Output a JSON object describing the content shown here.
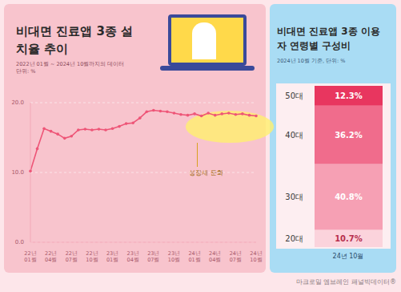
{
  "chart_data": [
    {
      "type": "line",
      "title": "비대면 진료앱 3종 설치율 추이",
      "subtitle": "2022년 01월 ~ 2024년 10월까지의 데이터",
      "unit_note": "단위: %",
      "annotation": "성장세 둔화",
      "categories": [
        "22년 01월",
        null,
        null,
        "22년 04월",
        null,
        null,
        "22년 07월",
        null,
        null,
        "22년 10월",
        null,
        null,
        "23년 01월",
        null,
        null,
        "23년 04월",
        null,
        null,
        "23년 07월",
        null,
        null,
        "23년 10월",
        null,
        null,
        "24년 01월",
        null,
        null,
        "24년 04월",
        null,
        null,
        "24년 07월",
        null,
        null,
        "24년 10월"
      ],
      "values": [
        10.2,
        13.4,
        16.3,
        15.9,
        15.5,
        14.9,
        15.2,
        16.1,
        16.2,
        16.1,
        16.2,
        16.1,
        16.3,
        16.6,
        17.0,
        17.1,
        17.8,
        18.7,
        18.9,
        18.8,
        18.7,
        18.5,
        18.3,
        18.2,
        18.4,
        18.1,
        18.5,
        18.2,
        18.4,
        18.5,
        18.3,
        18.4,
        18.2,
        18.1
      ],
      "color": "#ee5577",
      "marker": "circle",
      "grid": true,
      "ylim": [
        0,
        20
      ],
      "yticks": [
        {
          "value": 0,
          "label": "0.0"
        },
        {
          "value": 10,
          "label": "10.0"
        },
        {
          "value": 20,
          "label": "20.0"
        }
      ]
    },
    {
      "type": "bar",
      "title": "비대면 진료앱 3종 이용자 연령별 구성비",
      "subtitle": "2024년 10월 기준, 단위: %",
      "stacked": true,
      "data_labels": true,
      "tick_labels": "x",
      "categories": [
        "24년 10월"
      ],
      "ylim": [
        0,
        100
      ],
      "series": [
        {
          "name": "20대",
          "color": "#fbd3dc",
          "values": [
            10.7
          ],
          "value_labels": [
            "10.7%"
          ]
        },
        {
          "name": "30대",
          "color": "#f6a0b4",
          "values": [
            40.8
          ],
          "value_labels": [
            "40.8%"
          ]
        },
        {
          "name": "40대",
          "color": "#f06c8c",
          "values": [
            36.2
          ],
          "value_labels": [
            "36.2%"
          ]
        },
        {
          "name": "50대",
          "color": "#e8365f",
          "values": [
            12.3
          ],
          "value_labels": [
            "12.3%"
          ]
        }
      ]
    }
  ],
  "source": "마크로밀 엠브레인 패널빅데이터®"
}
